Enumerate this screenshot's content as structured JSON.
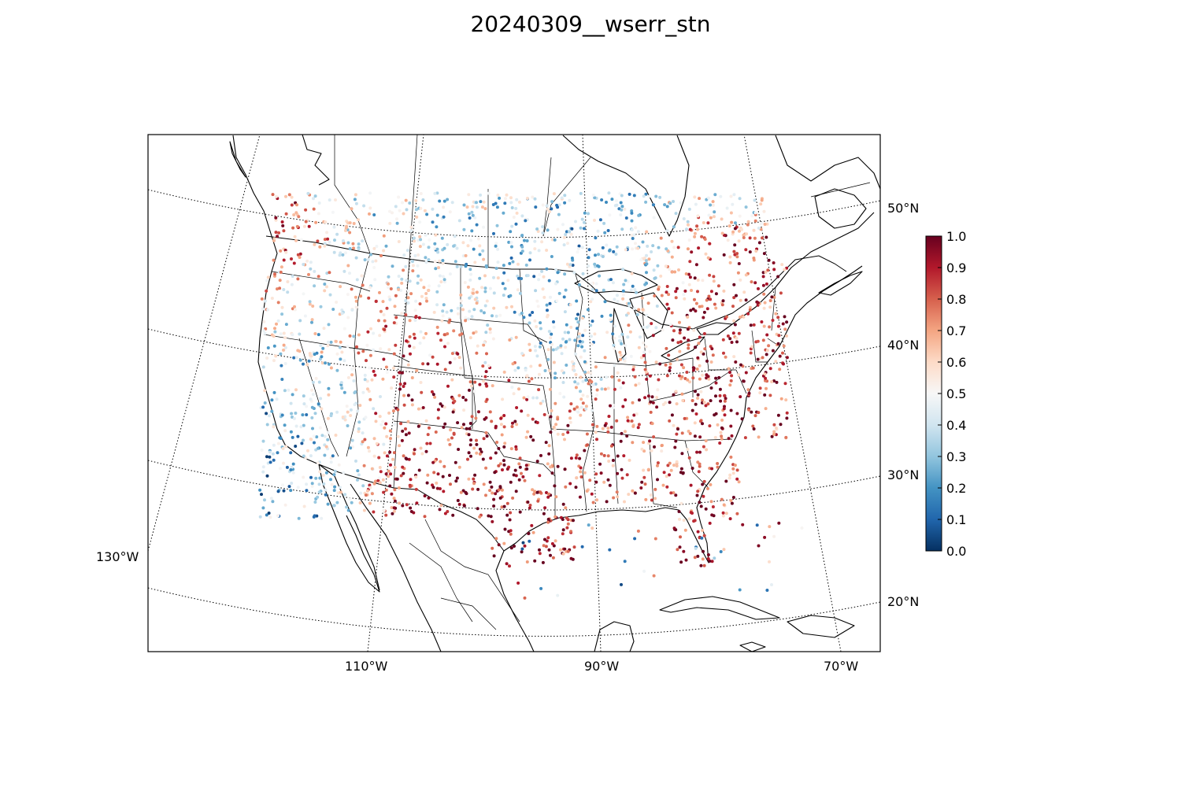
{
  "title": "20240309__wserr_stn",
  "map": {
    "projection": "lambert-conformal",
    "region": "Continental United States, southern Canada, northern Mexico, Caribbean",
    "parallels": [
      {
        "label": "20°N"
      },
      {
        "label": "30°N"
      },
      {
        "label": "40°N"
      },
      {
        "label": "50°N"
      }
    ],
    "meridians": [
      {
        "label": "130°W"
      },
      {
        "label": "110°W"
      },
      {
        "label": "90°W"
      },
      {
        "label": "70°W"
      }
    ],
    "features": [
      "coastlines",
      "state-borders",
      "country-borders",
      "dotted-graticule"
    ],
    "marker": "small-filled-circles",
    "colormap": "RdBu_r"
  },
  "colorbar": {
    "min": 0.0,
    "max": 1.0,
    "ticks": [
      "0.0",
      "0.1",
      "0.2",
      "0.3",
      "0.4",
      "0.5",
      "0.6",
      "0.7",
      "0.8",
      "0.9",
      "1.0"
    ],
    "colors": [
      "#053061",
      "#2166ac",
      "#4393c3",
      "#92c5de",
      "#d1e5f0",
      "#f7f7f7",
      "#fddbc7",
      "#f4a582",
      "#d6604d",
      "#b2182b",
      "#67001f"
    ]
  },
  "chart_data": {
    "type": "scatter",
    "title": "20240309__wserr_stn",
    "value_range": [
      0.0,
      1.0
    ],
    "hotspots": [
      {
        "region": "Pacific Northwest coast",
        "lon": -123,
        "lat": 46,
        "level": 0.8
      },
      {
        "region": "Central Texas",
        "lon": -98,
        "lat": 30,
        "level": 0.95
      },
      {
        "region": "Florida peninsula",
        "lon": -82,
        "lat": 28,
        "level": 0.85
      },
      {
        "region": "Pennsylvania / Ohio",
        "lon": -80,
        "lat": 40.8,
        "level": 0.85
      },
      {
        "region": "Colorado Front Range",
        "lon": -105,
        "lat": 39,
        "level": 0.85
      },
      {
        "region": "Southeast (GA/SC)",
        "lon": -83,
        "lat": 33,
        "level": 0.8
      },
      {
        "region": "California coast",
        "lon": -121,
        "lat": 37,
        "level": 0.25
      },
      {
        "region": "Great Basin / Nevada",
        "lon": -116,
        "lat": 39,
        "level": 0.35
      },
      {
        "region": "Upper Midwest",
        "lon": -93,
        "lat": 45,
        "level": 0.3
      },
      {
        "region": "Northern Plains",
        "lon": -100,
        "lat": 47,
        "level": 0.4
      }
    ]
  }
}
